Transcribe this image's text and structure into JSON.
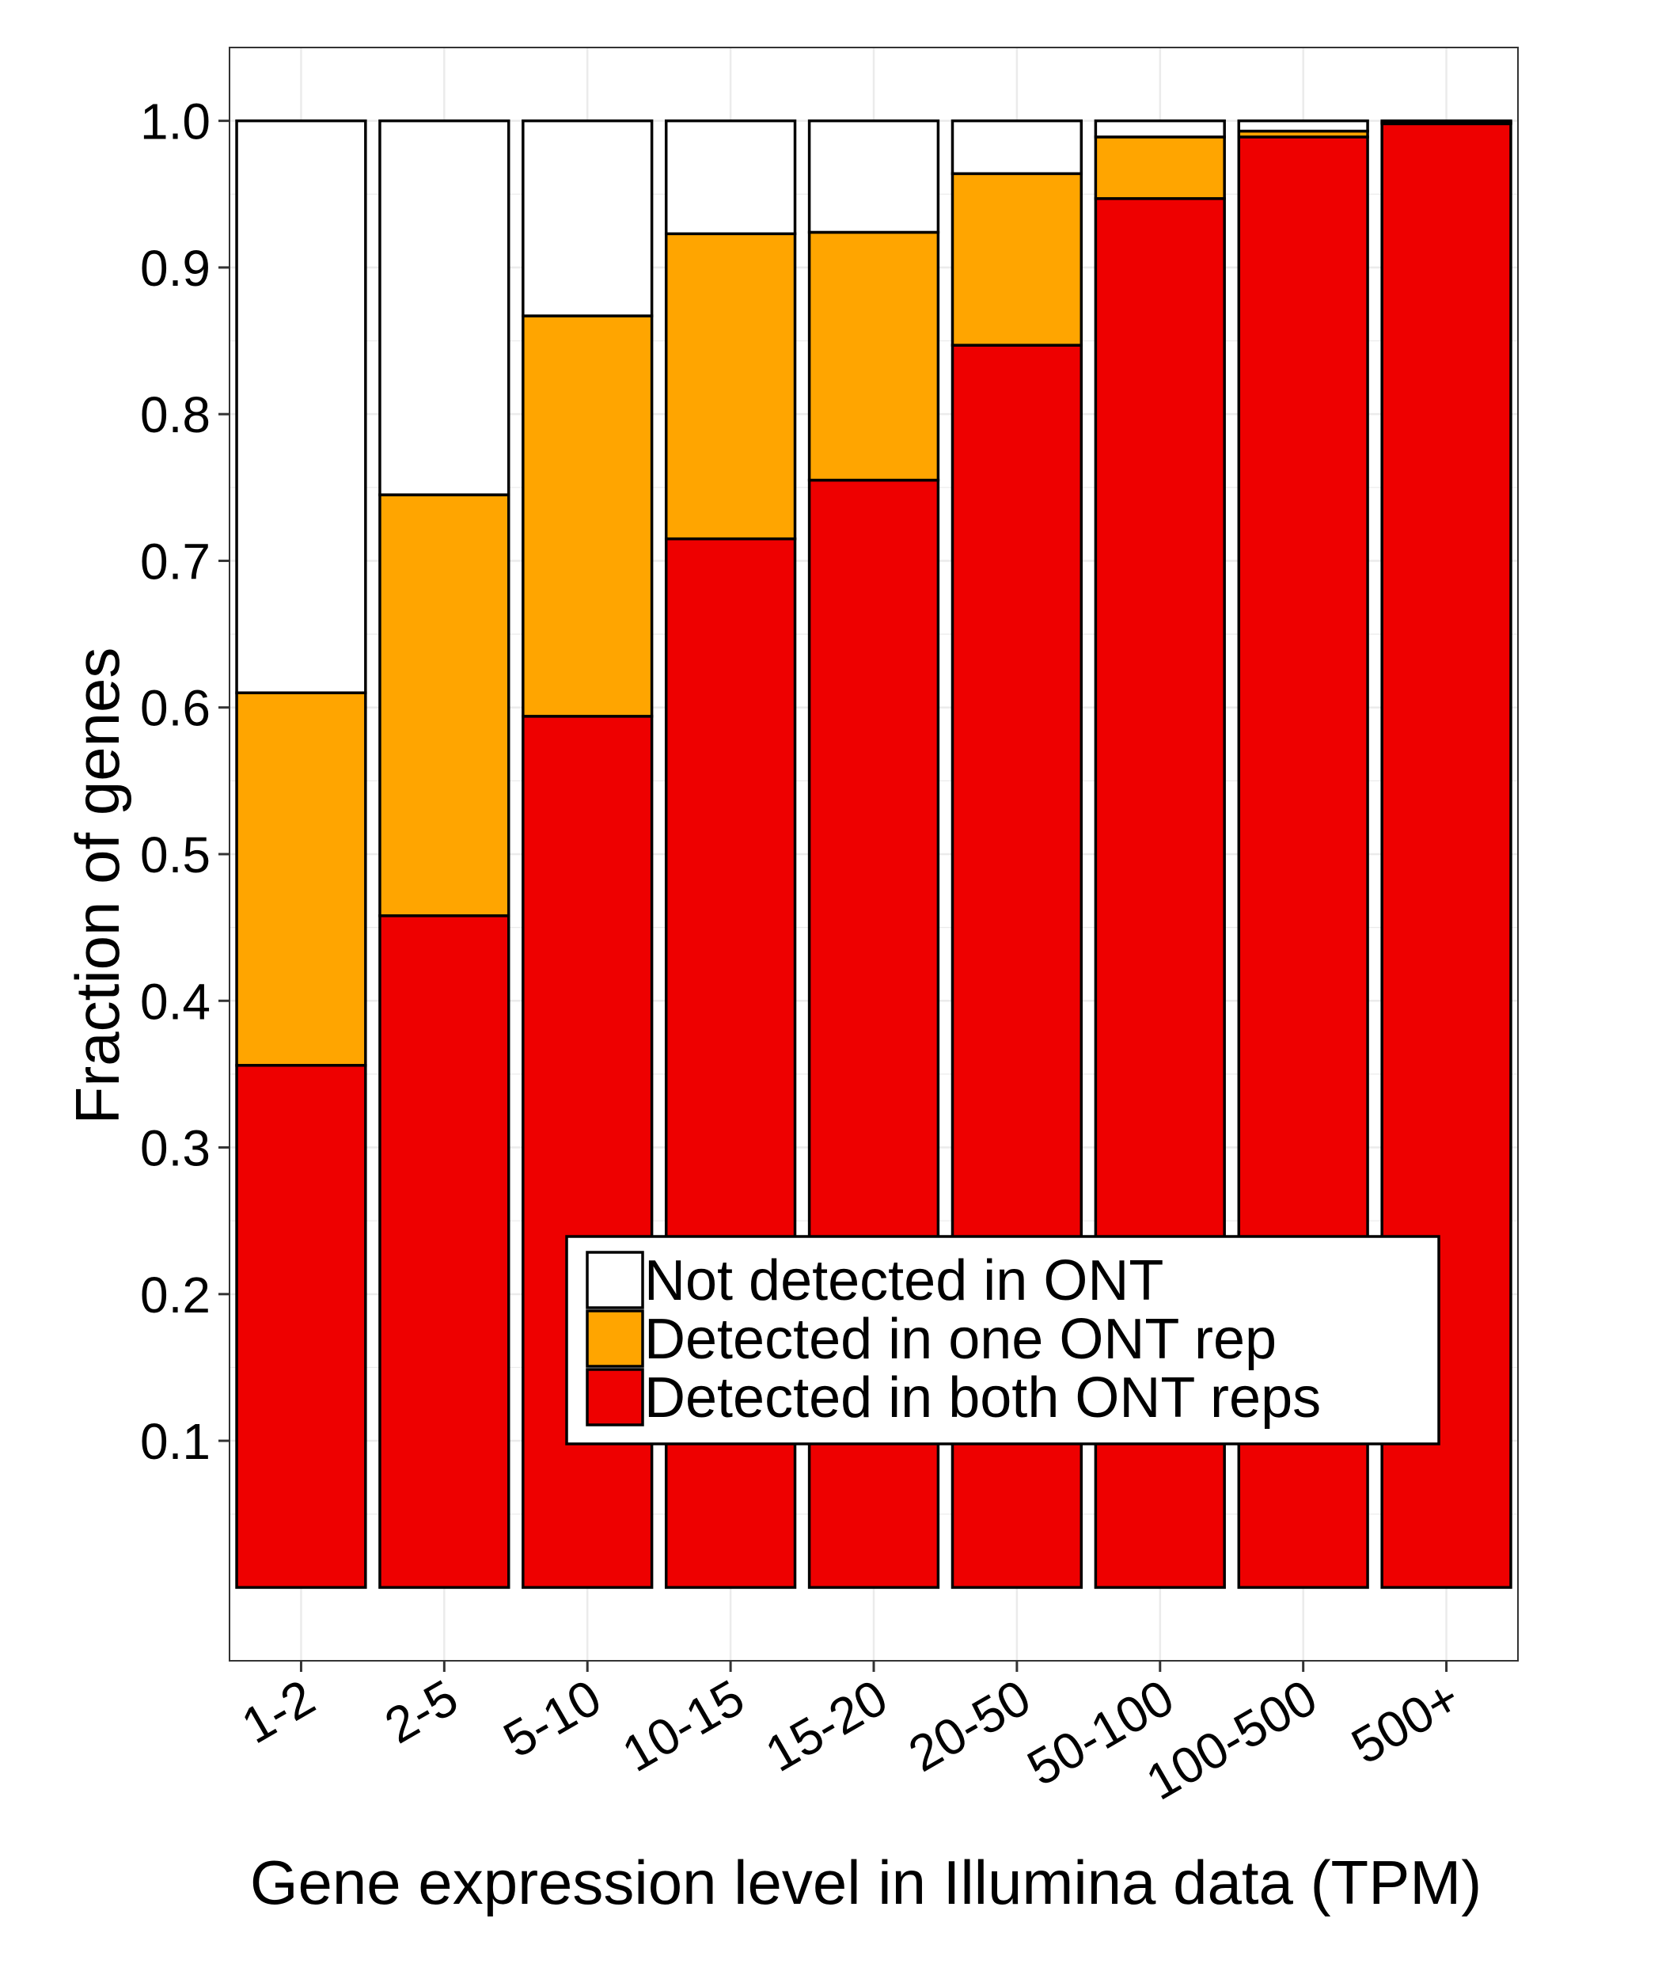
{
  "chart_data": {
    "type": "bar",
    "stacked": true,
    "categories": [
      "1-2",
      "2-5",
      "5-10",
      "10-15",
      "15-20",
      "20-50",
      "50-100",
      "100-500",
      "500+"
    ],
    "series": [
      {
        "name": "Detected in both ONT reps",
        "color": "#ee0000",
        "values": [
          0.356,
          0.458,
          0.594,
          0.715,
          0.755,
          0.847,
          0.947,
          0.989,
          0.998
        ]
      },
      {
        "name": "Detected in one ONT rep",
        "color": "#ffa500",
        "values": [
          0.254,
          0.287,
          0.273,
          0.208,
          0.169,
          0.117,
          0.042,
          0.004,
          0.001
        ]
      },
      {
        "name": "Not detected in ONT",
        "color": "#ffffff",
        "values": [
          0.39,
          0.255,
          0.133,
          0.077,
          0.076,
          0.036,
          0.011,
          0.007,
          0.001
        ]
      }
    ],
    "legend_order": [
      "Not detected in ONT",
      "Detected in one ONT rep",
      "Detected in both ONT reps"
    ],
    "legend_placement": "bottom-right inside",
    "xlabel": "Gene expression level in Illumina data (TPM)",
    "ylabel": "Fraction of genes",
    "ylim": [
      -0.05,
      1.05
    ],
    "yticks": [
      0.1,
      0.2,
      0.3,
      0.4,
      0.5,
      0.6,
      0.7,
      0.8,
      0.9,
      1.0
    ],
    "ytick_labels": [
      "0.1",
      "0.2",
      "0.3",
      "0.4",
      "0.5",
      "0.6",
      "0.7",
      "0.8",
      "0.9",
      "1.0"
    ],
    "grid": true
  }
}
